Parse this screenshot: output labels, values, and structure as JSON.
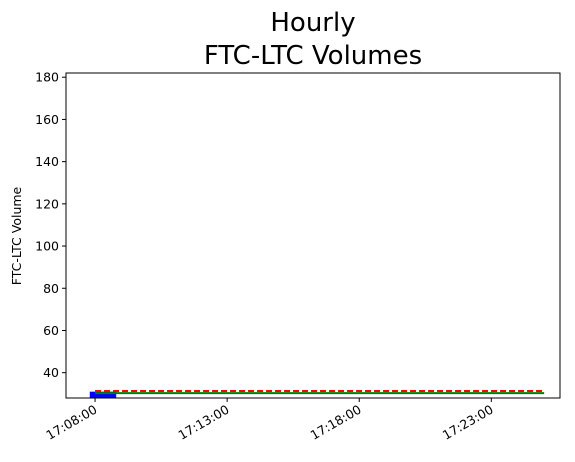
{
  "chart_data": {
    "type": "bar",
    "title_lines": [
      "Hourly",
      "FTC-LTC Volumes"
    ],
    "xlabel": "",
    "ylabel": "FTC-LTC Volume",
    "x_ticks": [
      "17:08:00",
      "17:13:00",
      "17:18:00",
      "17:23:00"
    ],
    "y_ticks": [
      40,
      60,
      80,
      100,
      120,
      140,
      160,
      180
    ],
    "ylim": [
      28,
      182
    ],
    "xlim_minutes_from_first_tick": [
      -1.1,
      17.6
    ],
    "grid": false,
    "bars": [
      {
        "x_start": "17:07:48",
        "x_end": "17:08:48",
        "value": 31,
        "color": "#0000ff"
      }
    ],
    "lines": [
      {
        "style": "solid",
        "color": "#008000",
        "x_start": "17:08:00",
        "x_end": "17:25:00",
        "value": 30.3
      },
      {
        "style": "dashed",
        "color": "#ff0000",
        "x_start": "17:08:00",
        "x_end": "17:25:00",
        "value": 31.3
      }
    ]
  }
}
